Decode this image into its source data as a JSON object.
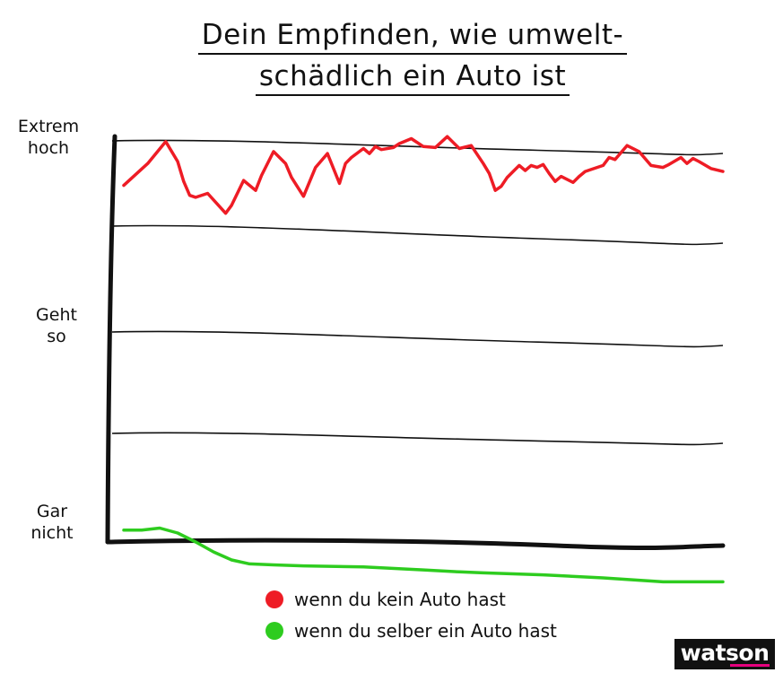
{
  "chart_data": {
    "type": "line",
    "title_line1": "Dein Empfinden, wie umwelt-",
    "title_line2": "schädlich ein Auto ist",
    "y_tick_labels": [
      {
        "line1": "Extrem",
        "line2": "hoch",
        "value": 4
      },
      {
        "line1": "Geht",
        "line2": "so",
        "value": 2
      },
      {
        "line1": "Gar",
        "line2": "nicht",
        "value": 0
      }
    ],
    "ylim": [
      -0.3,
      4.3
    ],
    "xlim": [
      0,
      100
    ],
    "grid": true,
    "legend_position": "bottom-center",
    "series": [
      {
        "name": "wenn du kein Auto hast",
        "color": "#ee1c25",
        "x": [
          0,
          4,
          7,
          9,
          10,
          11,
          12,
          14,
          17,
          18,
          20,
          22,
          23,
          25,
          27,
          28,
          30,
          32,
          34,
          36,
          37,
          38,
          40,
          41,
          42,
          43,
          45,
          46,
          48,
          50,
          52,
          54,
          56,
          58,
          60,
          61,
          62,
          63,
          64,
          66,
          67,
          68,
          69,
          70,
          71,
          72,
          73,
          75,
          76,
          77,
          78,
          80,
          81,
          82,
          84,
          86,
          88,
          90,
          91,
          93,
          94,
          95,
          96,
          98,
          100
        ],
        "values": [
          3.58,
          3.8,
          4.02,
          3.82,
          3.62,
          3.48,
          3.46,
          3.5,
          3.3,
          3.38,
          3.63,
          3.53,
          3.68,
          3.92,
          3.8,
          3.66,
          3.47,
          3.76,
          3.9,
          3.6,
          3.8,
          3.86,
          3.95,
          3.9,
          3.97,
          3.94,
          3.96,
          4.0,
          4.05,
          3.97,
          3.96,
          4.07,
          3.95,
          3.98,
          3.8,
          3.7,
          3.53,
          3.57,
          3.66,
          3.78,
          3.73,
          3.78,
          3.76,
          3.79,
          3.7,
          3.62,
          3.67,
          3.61,
          3.67,
          3.72,
          3.74,
          3.78,
          3.86,
          3.84,
          3.98,
          3.92,
          3.78,
          3.76,
          3.79,
          3.86,
          3.8,
          3.85,
          3.82,
          3.75,
          3.72
        ]
      },
      {
        "name": "wenn du selber ein Auto hast",
        "color": "#2ecc1f",
        "x": [
          0,
          3,
          6,
          9,
          12,
          15,
          18,
          21,
          25,
          30,
          40,
          50,
          56,
          60,
          70,
          80,
          90,
          100
        ],
        "values": [
          0.12,
          0.12,
          0.14,
          0.09,
          0.0,
          -0.1,
          -0.18,
          -0.22,
          -0.23,
          -0.24,
          -0.25,
          -0.28,
          -0.3,
          -0.31,
          -0.33,
          -0.36,
          -0.4,
          -0.4
        ]
      }
    ]
  },
  "legend": {
    "items": [
      {
        "label": "wenn du kein Auto hast",
        "color": "#ee1c25"
      },
      {
        "label": "wenn du selber ein Auto hast",
        "color": "#2ecc1f"
      }
    ]
  },
  "brand": {
    "logo_text": "watson",
    "accent": "#e6007e"
  }
}
